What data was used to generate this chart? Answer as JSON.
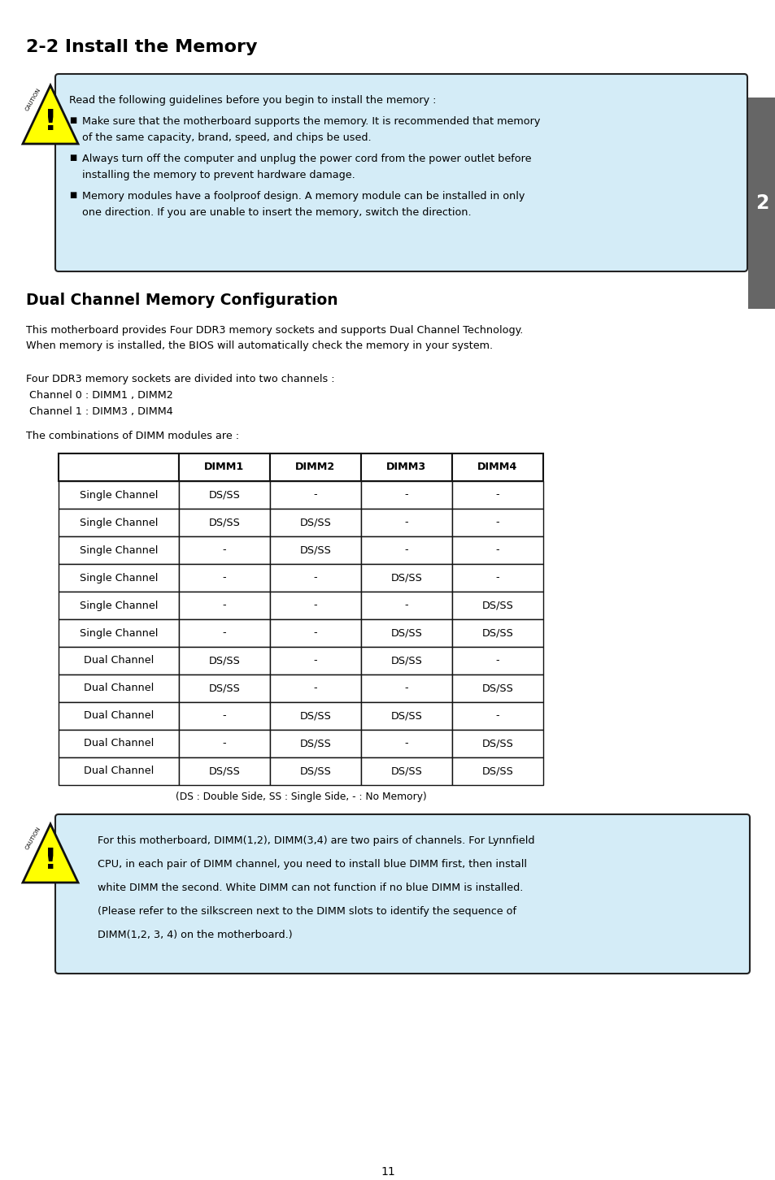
{
  "title": "2-2 Install the Memory",
  "section2_title": "Dual Channel Memory Configuration",
  "caution1_intro": "Read the following guidelines before you begin to install the memory :",
  "caution1_items": [
    [
      "Make sure that the motherboard supports the memory. It is recommended that memory",
      "of the same capacity, brand, speed, and chips be used."
    ],
    [
      "Always turn off the computer and unplug the power cord from the power outlet before",
      "installing the memory to prevent hardware damage."
    ],
    [
      "Memory modules have a foolproof design. A memory module can be installed in only",
      "one direction. If you are unable to insert the memory, switch the direction."
    ]
  ],
  "para1_line1": "This motherboard provides Four DDR3 memory sockets and supports Dual Channel Technology.",
  "para1_line2": "When memory is installed, the BIOS will automatically check the memory in your system.",
  "para2": "Four DDR3 memory sockets are divided into two channels :",
  "channel0": " Channel 0 : DIMM1 , DIMM2",
  "channel1": " Channel 1 : DIMM3 , DIMM4",
  "para3": "The combinations of DIMM modules are :",
  "table_headers": [
    "",
    "DIMM1",
    "DIMM2",
    "DIMM3",
    "DIMM4"
  ],
  "table_rows": [
    [
      "Single Channel",
      "DS/SS",
      "-",
      "-",
      "-"
    ],
    [
      "Single Channel",
      "DS/SS",
      "DS/SS",
      "-",
      "-"
    ],
    [
      "Single Channel",
      "-",
      "DS/SS",
      "-",
      "-"
    ],
    [
      "Single Channel",
      "-",
      "-",
      "DS/SS",
      "-"
    ],
    [
      "Single Channel",
      "-",
      "-",
      "-",
      "DS/SS"
    ],
    [
      "Single Channel",
      "-",
      "-",
      "DS/SS",
      "DS/SS"
    ],
    [
      "Dual Channel",
      "DS/SS",
      "-",
      "DS/SS",
      "-"
    ],
    [
      "Dual Channel",
      "DS/SS",
      "-",
      "-",
      "DS/SS"
    ],
    [
      "Dual Channel",
      "-",
      "DS/SS",
      "DS/SS",
      "-"
    ],
    [
      "Dual Channel",
      "-",
      "DS/SS",
      "-",
      "DS/SS"
    ],
    [
      "Dual Channel",
      "DS/SS",
      "DS/SS",
      "DS/SS",
      "DS/SS"
    ]
  ],
  "table_note": "(DS : Double Side, SS : Single Side, - : No Memory)",
  "caution2_lines": [
    "For this motherboard, DIMM(1,2), DIMM(3,4) are two pairs of channels. For Lynnfield",
    "CPU, in each pair of DIMM channel, you need to install blue DIMM first, then install",
    "white DIMM the second. White DIMM can not function if no blue DIMM is installed.",
    "(Please refer to the silkscreen next to the DIMM slots to identify the sequence of",
    "DIMM(1,2, 3, 4) on the motherboard.)"
  ],
  "page_number": "11",
  "sidebar_number": "2",
  "bg_color": "#ffffff",
  "box_bg_color": "#d4ecf7",
  "box_border_color": "#000000",
  "sidebar_color": "#666666"
}
